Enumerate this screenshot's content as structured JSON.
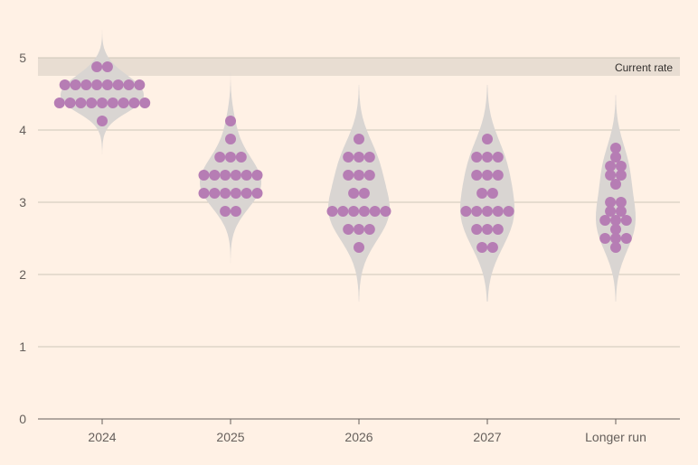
{
  "chart_data": {
    "type": "scatter",
    "subtype": "beeswarm-with-violin",
    "categories": [
      "2024",
      "2025",
      "2026",
      "2027",
      "Longer run"
    ],
    "y_ticks": [
      "0",
      "1",
      "2",
      "3",
      "4",
      "5"
    ],
    "ylim": [
      0,
      5.5
    ],
    "grid": true,
    "current_rate": {
      "label": "Current rate",
      "low": 4.75,
      "high": 5.0
    },
    "colors": {
      "background": "#fff1e5",
      "dot": "#b67db4",
      "violin": "#d9d5d2",
      "band": "#e8ddd2",
      "grid": "#cec6b9",
      "axis": "#66605c"
    },
    "series": [
      {
        "category": "2024",
        "values": [
          4.875,
          4.875,
          4.625,
          4.625,
          4.625,
          4.625,
          4.625,
          4.625,
          4.625,
          4.625,
          4.375,
          4.375,
          4.375,
          4.375,
          4.375,
          4.375,
          4.375,
          4.375,
          4.375,
          4.125
        ]
      },
      {
        "category": "2025",
        "values": [
          4.125,
          3.875,
          3.625,
          3.625,
          3.625,
          3.375,
          3.375,
          3.375,
          3.375,
          3.375,
          3.375,
          3.125,
          3.125,
          3.125,
          3.125,
          3.125,
          3.125,
          2.875,
          2.875
        ]
      },
      {
        "category": "2026",
        "values": [
          3.875,
          3.625,
          3.625,
          3.625,
          3.375,
          3.375,
          3.375,
          3.125,
          3.125,
          2.875,
          2.875,
          2.875,
          2.875,
          2.875,
          2.875,
          2.625,
          2.625,
          2.625,
          2.375
        ]
      },
      {
        "category": "2027",
        "values": [
          3.875,
          3.625,
          3.625,
          3.625,
          3.375,
          3.375,
          3.375,
          3.125,
          3.125,
          2.875,
          2.875,
          2.875,
          2.875,
          2.875,
          2.625,
          2.625,
          2.625,
          2.375,
          2.375
        ]
      },
      {
        "category": "Longer run",
        "values": [
          3.75,
          3.625,
          3.5,
          3.5,
          3.375,
          3.375,
          3.25,
          3.0,
          3.0,
          2.875,
          2.875,
          2.75,
          2.75,
          2.75,
          2.625,
          2.5,
          2.5,
          2.5,
          2.375
        ]
      }
    ]
  }
}
